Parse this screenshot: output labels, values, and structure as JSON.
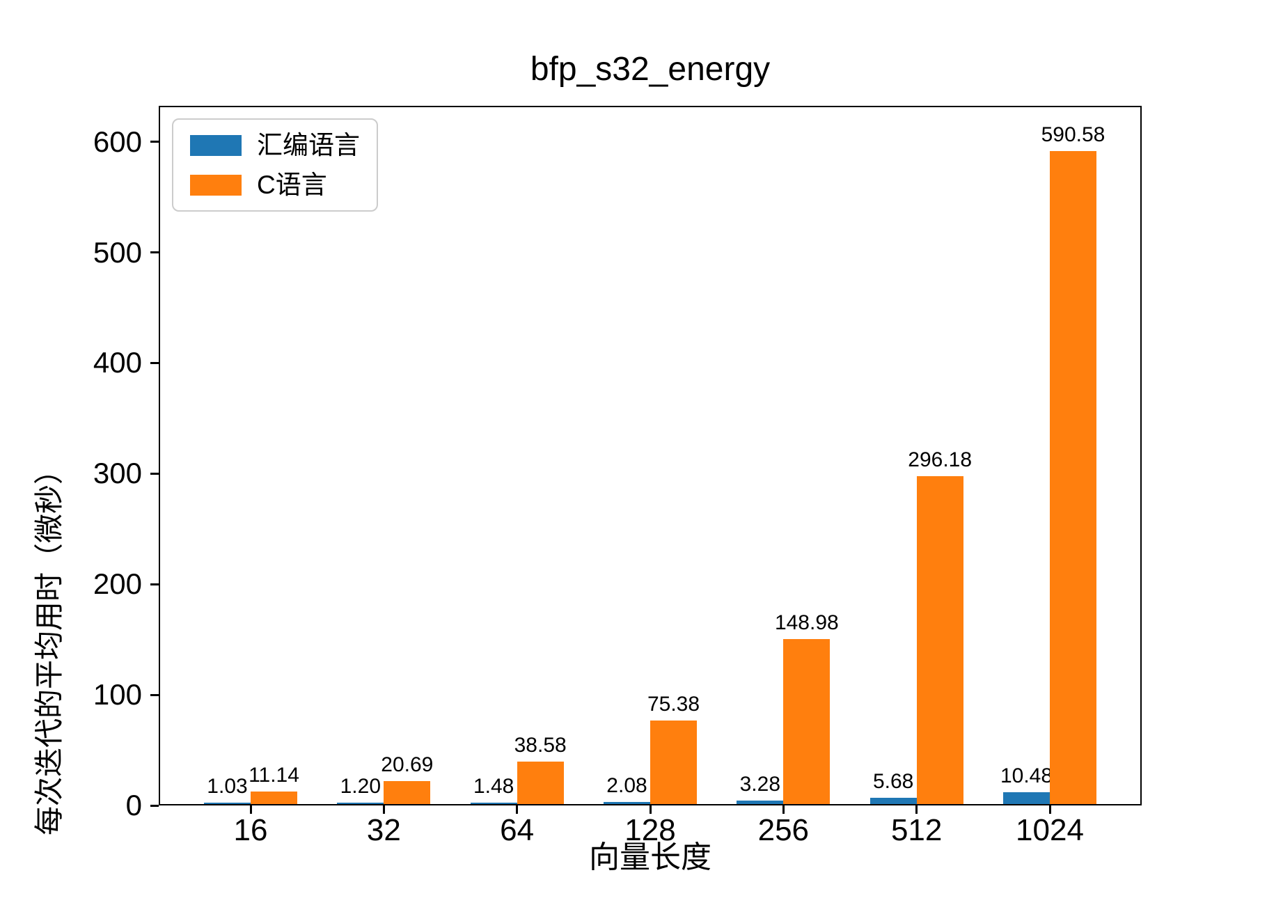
{
  "title": "bfp_s32_energy",
  "colors": {
    "series_asm": "#1f77b4",
    "series_c": "#ff7f0e",
    "axis": "#000000",
    "legend_border": "#cccccc",
    "background": "#ffffff"
  },
  "legend": {
    "position": "upper left",
    "entries": [
      "汇编语言",
      "C语言"
    ]
  },
  "chart_data": {
    "type": "bar",
    "title": "bfp_s32_energy",
    "xlabel": "向量长度",
    "ylabel": "每次迭代的平均用时（微秒）",
    "categories": [
      "16",
      "32",
      "64",
      "128",
      "256",
      "512",
      "1024"
    ],
    "series": [
      {
        "name": "汇编语言",
        "color": "#1f77b4",
        "values": [
          1.03,
          1.2,
          1.48,
          2.08,
          3.28,
          5.68,
          10.48
        ]
      },
      {
        "name": "C语言",
        "color": "#ff7f0e",
        "values": [
          11.14,
          20.69,
          38.58,
          75.38,
          148.98,
          296.18,
          590.58
        ]
      }
    ],
    "value_labels_decimals": 2,
    "yticks": [
      0,
      100,
      200,
      300,
      400,
      500,
      600
    ],
    "ylim": [
      0,
      630
    ],
    "grid": false,
    "legend_position": "upper left"
  }
}
